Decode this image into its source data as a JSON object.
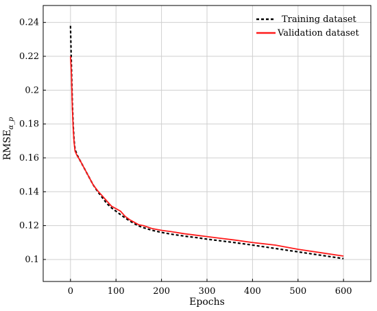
{
  "chart_data": {
    "type": "line",
    "xlabel": "Epochs",
    "ylabel": "RMSE",
    "ylabel_subscript": "α_p",
    "xlim": [
      -60,
      660
    ],
    "ylim": [
      0.087,
      0.25
    ],
    "xticks": [
      0,
      100,
      200,
      300,
      400,
      500,
      600
    ],
    "yticks": [
      0.1,
      0.12,
      0.14,
      0.16,
      0.18,
      0.2,
      0.22,
      0.24
    ],
    "ytick_labels": [
      "0.1",
      "0.12",
      "0.14",
      "0.16",
      "0.18",
      "0.2",
      "0.22",
      "0.24"
    ],
    "grid": true,
    "legend_position": "top-right",
    "series": [
      {
        "name": "Training dataset",
        "color": "#000000",
        "style": "dashed",
        "x": [
          0,
          2,
          4,
          6,
          8,
          10,
          15,
          20,
          30,
          40,
          50,
          60,
          70,
          80,
          90,
          100,
          110,
          120,
          130,
          140,
          150,
          160,
          180,
          200,
          220,
          250,
          280,
          300,
          330,
          360,
          400,
          450,
          500,
          550,
          600
        ],
        "y": [
          0.238,
          0.215,
          0.193,
          0.179,
          0.17,
          0.165,
          0.1615,
          0.159,
          0.154,
          0.149,
          0.144,
          0.14,
          0.1365,
          0.133,
          0.1305,
          0.1285,
          0.1265,
          0.1245,
          0.1228,
          0.1212,
          0.1198,
          0.1188,
          0.1172,
          0.116,
          0.115,
          0.1138,
          0.1128,
          0.112,
          0.111,
          0.11,
          0.1085,
          0.1065,
          0.1045,
          0.1025,
          0.1005
        ]
      },
      {
        "name": "Validation dataset",
        "color": "#ff1a1a",
        "style": "solid",
        "x": [
          0,
          2,
          4,
          6,
          8,
          10,
          15,
          20,
          30,
          40,
          50,
          60,
          70,
          80,
          90,
          100,
          110,
          120,
          130,
          140,
          150,
          160,
          180,
          200,
          220,
          250,
          280,
          300,
          330,
          360,
          400,
          450,
          500,
          550,
          600
        ],
        "y": [
          0.22,
          0.21,
          0.19,
          0.177,
          0.169,
          0.164,
          0.161,
          0.159,
          0.154,
          0.149,
          0.144,
          0.1405,
          0.1375,
          0.1345,
          0.1315,
          0.13,
          0.1285,
          0.1255,
          0.1235,
          0.122,
          0.1205,
          0.12,
          0.1182,
          0.1172,
          0.1165,
          0.1152,
          0.1142,
          0.1135,
          0.1125,
          0.1115,
          0.11,
          0.1085,
          0.106,
          0.104,
          0.102
        ]
      }
    ]
  }
}
